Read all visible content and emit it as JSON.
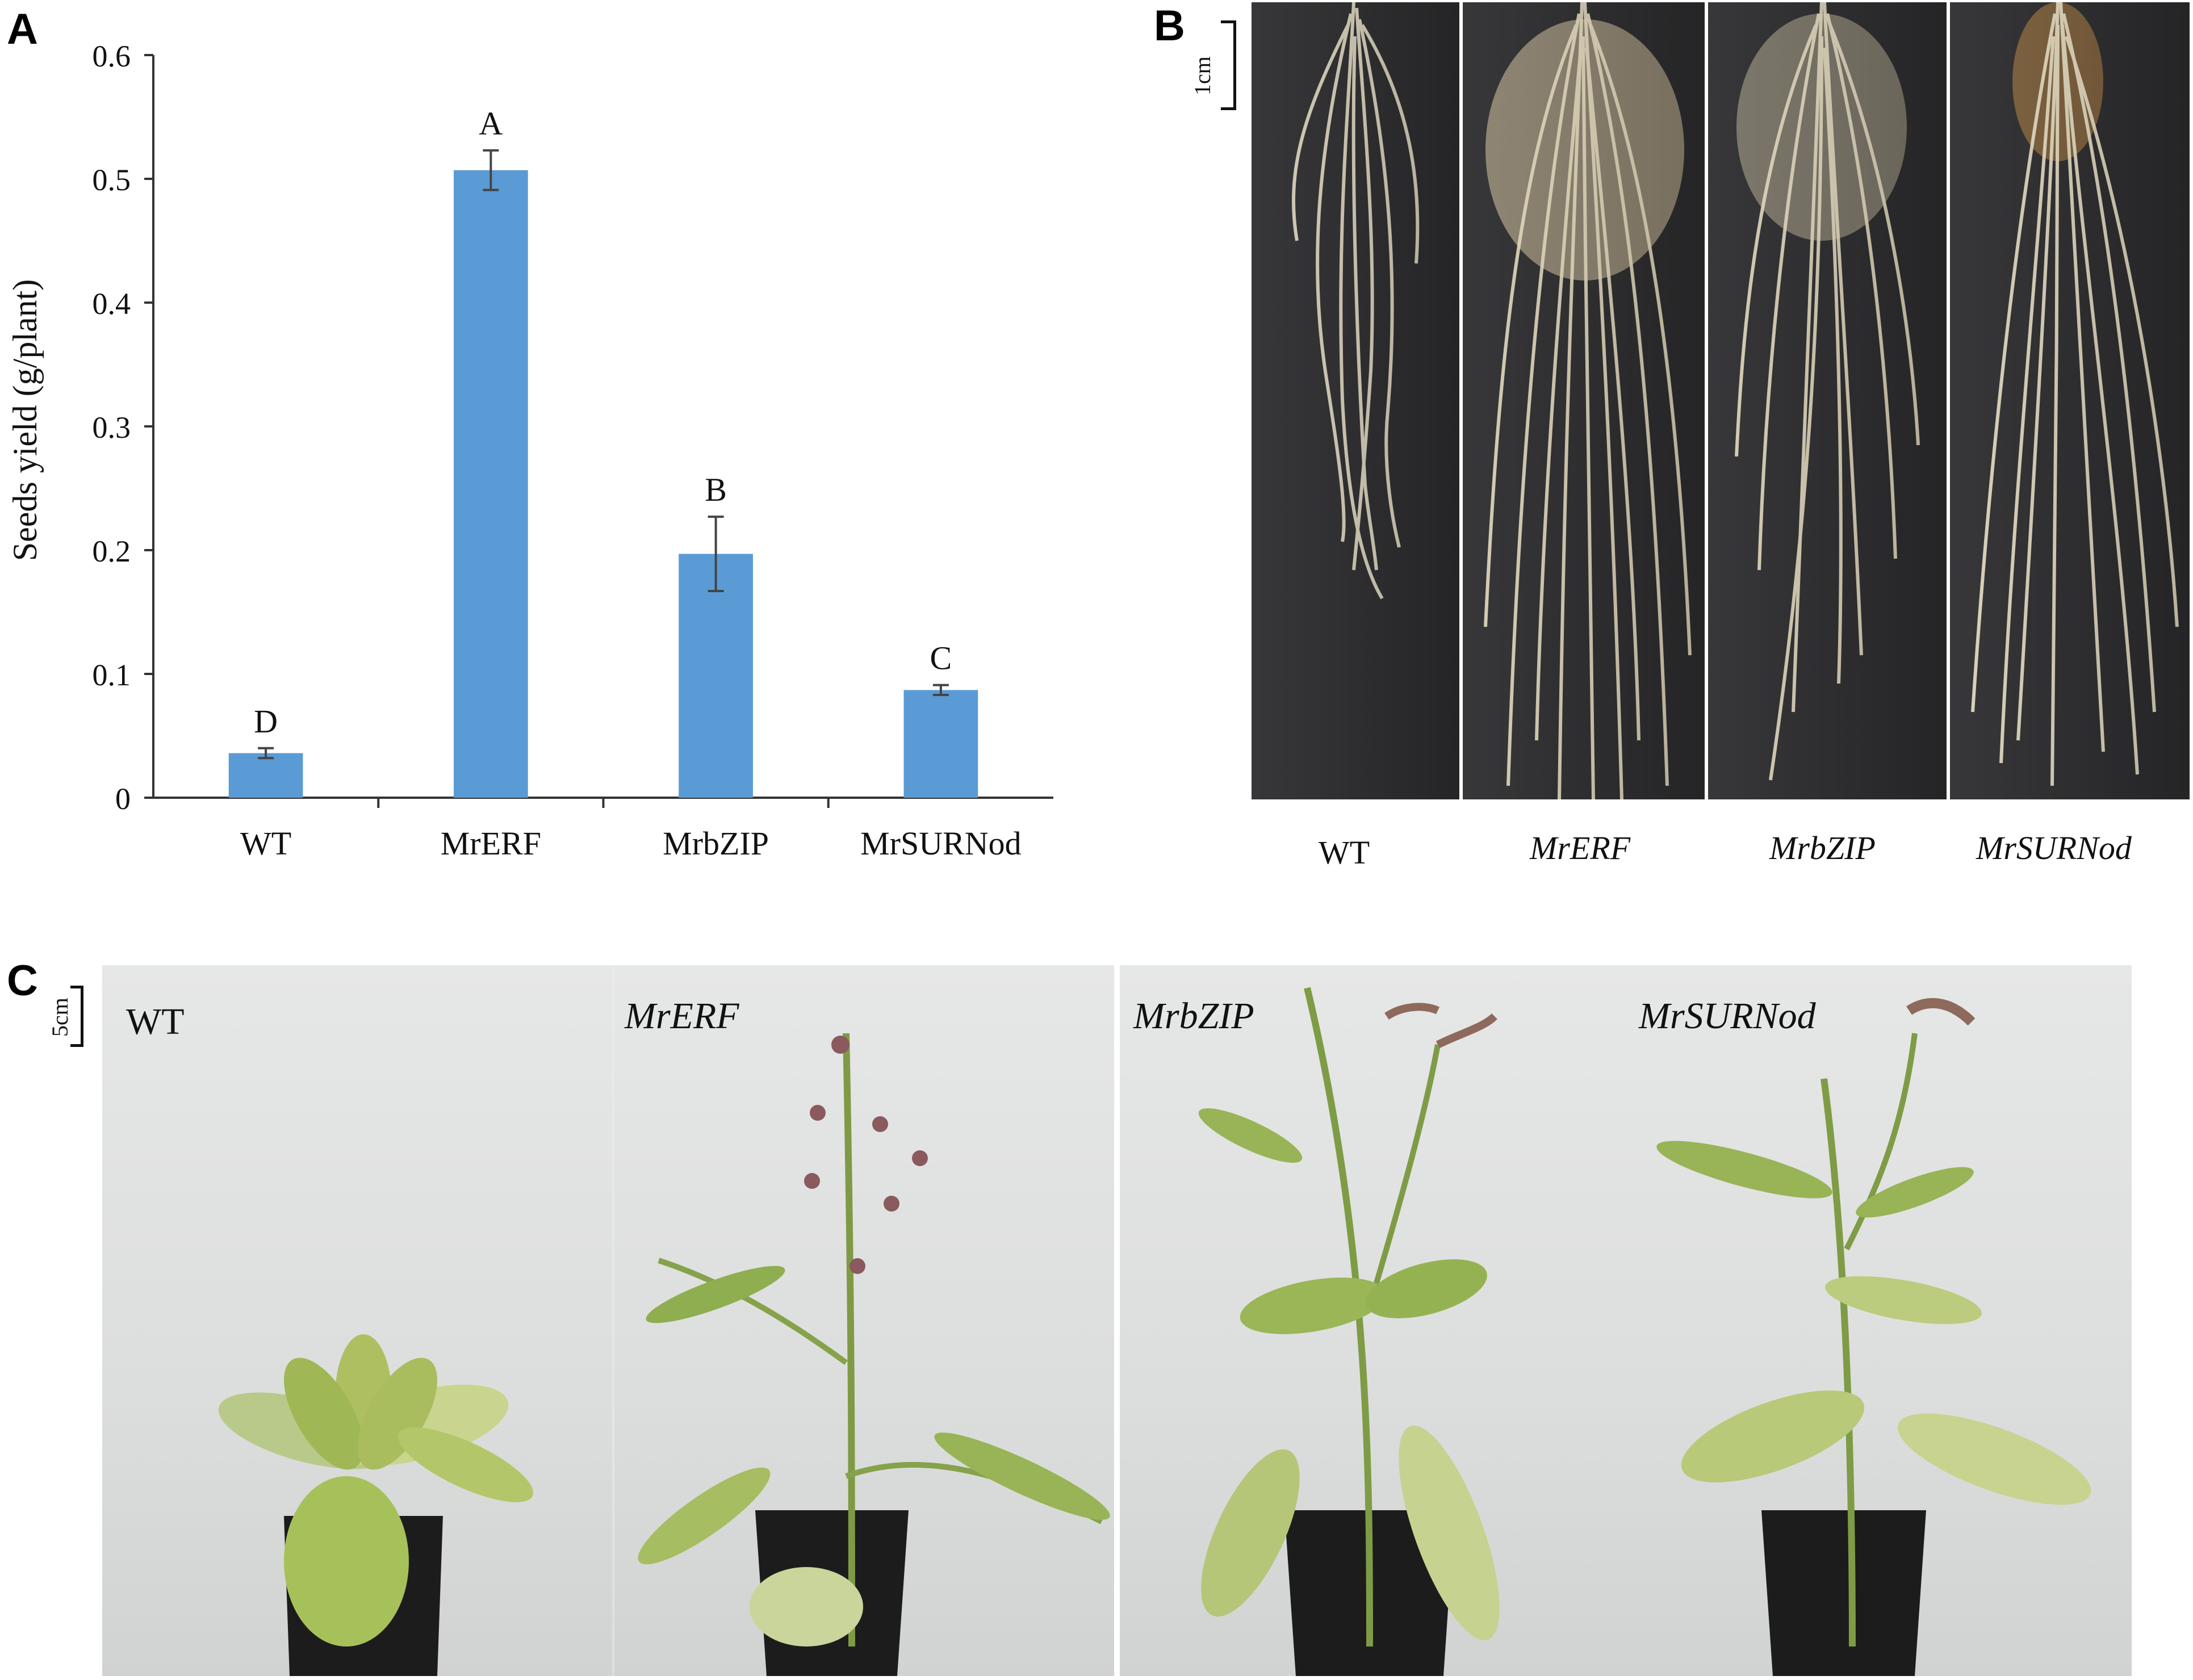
{
  "panels": {
    "a": "A",
    "b": "B",
    "c": "C"
  },
  "chart_data": {
    "type": "bar",
    "ylabel": "Seeds yield (g/plant)",
    "xlabel": "",
    "categories": [
      "WT",
      "MrERF",
      "MrbZIP",
      "MrSURNod"
    ],
    "values": [
      0.036,
      0.507,
      0.197,
      0.087
    ],
    "errors": [
      0.004,
      0.016,
      0.03,
      0.004
    ],
    "significance_letters": [
      "D",
      "A",
      "B",
      "C"
    ],
    "ylim": [
      0,
      0.6
    ],
    "yticks": [
      "0",
      "0.1",
      "0.2",
      "0.3",
      "0.4",
      "0.5",
      "0.6"
    ],
    "grid": false,
    "bar_color": "#5b9bd5"
  },
  "roots_panel": {
    "scale_label": "1cm",
    "labels": [
      "WT",
      "MrERF",
      "MrbZIP",
      "MrSURNod"
    ]
  },
  "plants_panel": {
    "scale_label": "5cm",
    "labels": [
      "WT",
      "MrERF",
      "MrbZIP",
      "MrSURNod"
    ]
  }
}
